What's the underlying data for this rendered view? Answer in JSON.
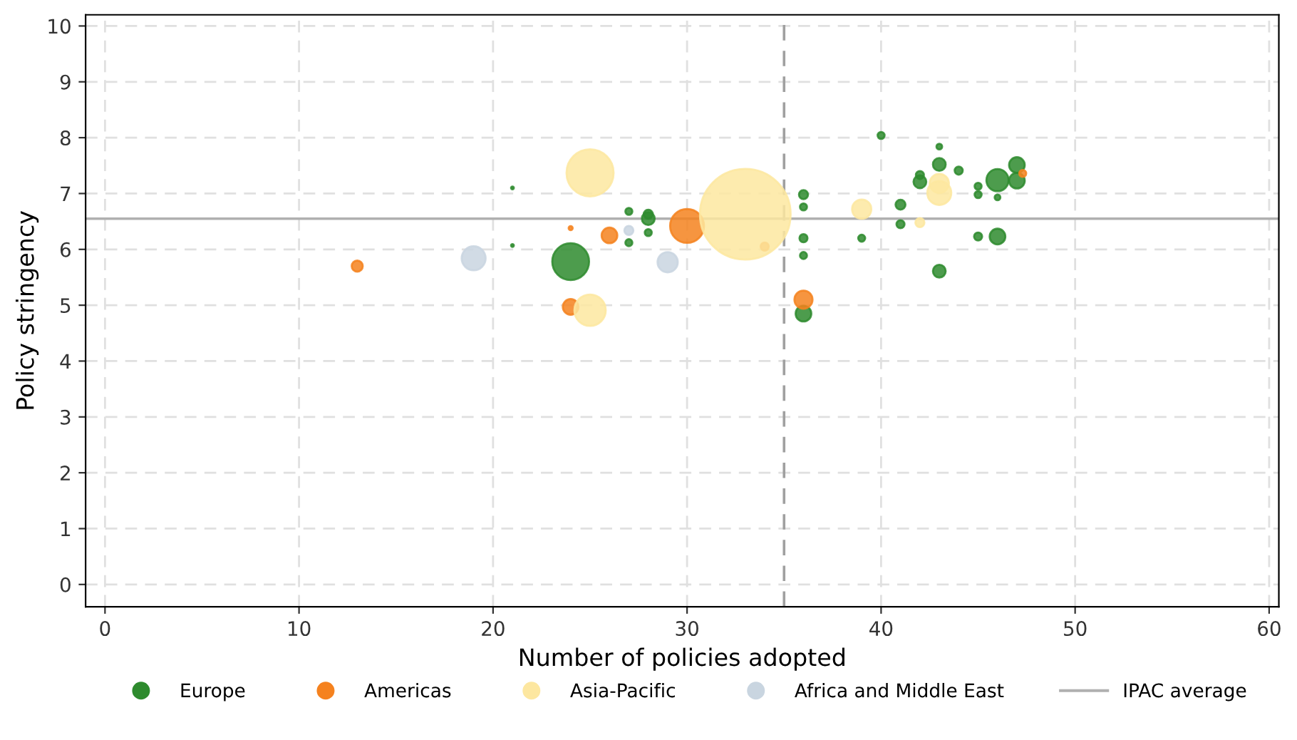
{
  "chart_data": {
    "type": "bubble",
    "xlabel": "Number of policies adopted",
    "ylabel": "Policy stringency",
    "xlim": [
      -1,
      60.5
    ],
    "ylim": [
      -0.4,
      10.2
    ],
    "xticks": [
      0,
      10,
      20,
      30,
      40,
      50,
      60
    ],
    "yticks": [
      0,
      1,
      2,
      3,
      4,
      5,
      6,
      7,
      8,
      9,
      10
    ],
    "grid": true,
    "legend": "bottom",
    "series": [
      {
        "name": "Europe",
        "color": "#2e8b2e",
        "x": [
          24,
          27,
          28,
          28,
          28,
          27,
          21,
          21,
          40,
          43,
          43,
          42,
          42,
          44,
          46,
          47,
          47,
          45,
          45,
          46,
          36,
          36,
          41,
          41,
          36,
          36,
          39,
          45,
          46,
          43,
          36
        ],
        "values": [
          5.78,
          6.68,
          6.55,
          6.63,
          6.3,
          6.12,
          7.1,
          6.07,
          8.04,
          7.84,
          7.52,
          7.33,
          7.21,
          7.41,
          7.24,
          7.51,
          7.23,
          7.13,
          6.98,
          6.93,
          6.98,
          6.76,
          6.8,
          6.45,
          6.2,
          5.89,
          6.2,
          6.23,
          6.23,
          5.61,
          4.85
        ],
        "sizes": [
          0.165,
          0.006,
          0.02,
          0.01,
          0.006,
          0.006,
          0.001,
          0.001,
          0.006,
          0.004,
          0.02,
          0.008,
          0.02,
          0.008,
          0.06,
          0.03,
          0.03,
          0.006,
          0.006,
          0.004,
          0.01,
          0.006,
          0.012,
          0.008,
          0.008,
          0.006,
          0.006,
          0.008,
          0.03,
          0.02,
          0.03
        ]
      },
      {
        "name": "Americas",
        "color": "#f5821f",
        "x": [
          13,
          24,
          26,
          30,
          24,
          34,
          36,
          47.3
        ],
        "values": [
          5.7,
          6.38,
          6.25,
          6.42,
          4.97,
          6.05,
          5.1,
          7.36
        ],
        "sizes": [
          0.015,
          0.002,
          0.03,
          0.14,
          0.03,
          0.008,
          0.04,
          0.006
        ]
      },
      {
        "name": "Asia-Pacific",
        "color": "#fde7a0",
        "x": [
          25,
          25,
          33,
          39,
          43,
          43,
          42
        ],
        "values": [
          7.37,
          4.91,
          6.63,
          6.72,
          7.18,
          7.01,
          6.48
        ],
        "sizes": [
          0.27,
          0.12,
          1,
          0.045,
          0.045,
          0.07,
          0.01
        ]
      },
      {
        "name": "Africa and Middle East",
        "color": "#c9d5e0",
        "x": [
          19,
          27,
          29
        ],
        "values": [
          5.84,
          6.34,
          5.77
        ],
        "sizes": [
          0.07,
          0.01,
          0.05
        ]
      }
    ],
    "ref_lines": [
      {
        "axis": "y",
        "value": 6.55,
        "label": "IPAC average",
        "color": "#b0b0b0",
        "line_style": "solid"
      },
      {
        "axis": "x",
        "value": 35,
        "label": null,
        "color": "#a0a0a0",
        "line_style": "dashed"
      }
    ]
  }
}
